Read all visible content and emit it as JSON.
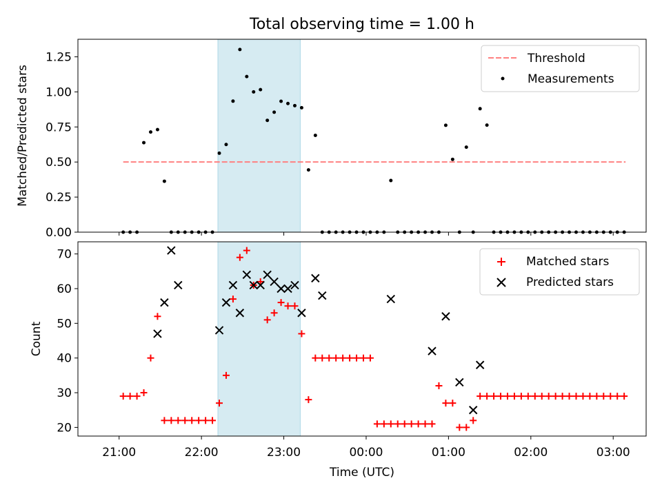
{
  "title": "Total observing time = 1.00 h",
  "colors": {
    "threshold": "#ff8080",
    "measurements": "#000000",
    "matched": "#ff0000",
    "predicted": "#000000",
    "shade": "#add8e6"
  },
  "chart_data": [
    {
      "type": "scatter",
      "ylabel": "Matched/Predicted stars",
      "ylim": [
        0,
        1.375
      ],
      "y_ticks": [
        0,
        0.25,
        0.5,
        0.75,
        1.0,
        1.25
      ],
      "y_tick_labels": [
        "0.00",
        "0.25",
        "0.50",
        "0.75",
        "1.00",
        "1.25"
      ],
      "legend": {
        "placement": "top-right",
        "entries": [
          "Threshold",
          "Measurements"
        ]
      },
      "shaded_span": [
        "22:12",
        "23:12"
      ],
      "threshold": {
        "name": "Threshold",
        "y": 0.5,
        "x_range": [
          "21:03",
          "03:09"
        ]
      },
      "series": [
        {
          "name": "Measurements",
          "x": [
            "21:03",
            "21:08",
            "21:13",
            "21:18",
            "21:23",
            "21:28",
            "21:33",
            "21:38",
            "21:43",
            "21:48",
            "21:53",
            "21:58",
            "22:03",
            "22:08",
            "22:13",
            "22:18",
            "22:23",
            "22:28",
            "22:33",
            "22:38",
            "22:43",
            "22:48",
            "22:53",
            "22:58",
            "23:03",
            "23:08",
            "23:13",
            "23:18",
            "23:23",
            "23:28",
            "23:33",
            "23:38",
            "23:43",
            "23:48",
            "23:53",
            "23:58",
            "00:03",
            "00:08",
            "00:13",
            "00:18",
            "00:23",
            "00:28",
            "00:33",
            "00:38",
            "00:43",
            "00:48",
            "00:53",
            "00:58",
            "01:03",
            "01:08",
            "01:13",
            "01:18",
            "01:23",
            "01:28",
            "01:33",
            "01:38",
            "01:43",
            "01:48",
            "01:53",
            "01:58",
            "02:03",
            "02:08",
            "02:13",
            "02:18",
            "02:23",
            "02:28",
            "02:33",
            "02:38",
            "02:43",
            "02:48",
            "02:53",
            "02:58",
            "03:03",
            "03:08"
          ],
          "y": [
            0,
            0,
            0,
            0.638,
            0.714,
            0.731,
            0.363,
            0,
            0,
            0,
            0,
            0,
            0,
            0,
            0.563,
            0.625,
            0.934,
            1.302,
            1.109,
            1.0,
            1.016,
            0.797,
            0.855,
            0.933,
            0.917,
            0.902,
            0.887,
            0.444,
            0.69,
            0,
            0,
            0,
            0,
            0,
            0,
            0,
            0,
            0,
            0,
            0.368,
            0,
            0,
            0,
            0,
            0,
            0,
            0,
            0.762,
            0.519,
            0,
            0.606,
            0,
            0.88,
            0.763,
            0,
            0,
            0,
            0,
            0,
            0,
            0,
            0,
            0,
            0,
            0,
            0,
            0,
            0,
            0,
            0,
            0,
            0,
            0,
            0
          ]
        }
      ]
    },
    {
      "type": "scatter",
      "xlabel": "Time (UTC)",
      "ylabel": "Count",
      "ylim": [
        17.5,
        73.5
      ],
      "y_ticks": [
        20,
        30,
        40,
        50,
        60,
        70
      ],
      "y_tick_labels": [
        "20",
        "30",
        "40",
        "50",
        "60",
        "70"
      ],
      "x_ticks": [
        "21:00",
        "22:00",
        "23:00",
        "00:00",
        "01:00",
        "02:00",
        "03:00"
      ],
      "legend": {
        "placement": "top-right",
        "entries": [
          "Matched stars",
          "Predicted stars"
        ]
      },
      "shaded_span": [
        "22:12",
        "23:12"
      ],
      "series": [
        {
          "name": "Matched stars",
          "x": [
            "21:03",
            "21:08",
            "21:13",
            "21:18",
            "21:23",
            "21:28",
            "21:33",
            "21:38",
            "21:43",
            "21:48",
            "21:53",
            "21:58",
            "22:03",
            "22:08",
            "22:13",
            "22:18",
            "22:23",
            "22:28",
            "22:33",
            "22:38",
            "22:43",
            "22:48",
            "22:53",
            "22:58",
            "23:03",
            "23:08",
            "23:13",
            "23:18",
            "23:23",
            "23:28",
            "23:33",
            "23:38",
            "23:43",
            "23:48",
            "23:53",
            "23:58",
            "00:03",
            "00:08",
            "00:13",
            "00:18",
            "00:23",
            "00:28",
            "00:33",
            "00:38",
            "00:43",
            "00:48",
            "00:53",
            "00:58",
            "01:03",
            "01:08",
            "01:13",
            "01:18",
            "01:23",
            "01:28",
            "01:33",
            "01:38",
            "01:43",
            "01:48",
            "01:53",
            "01:58",
            "02:03",
            "02:08",
            "02:13",
            "02:18",
            "02:23",
            "02:28",
            "02:33",
            "02:38",
            "02:43",
            "02:48",
            "02:53",
            "02:58",
            "03:03",
            "03:08"
          ],
          "y": [
            29,
            29,
            29,
            30,
            40,
            52,
            22,
            22,
            22,
            22,
            22,
            22,
            22,
            22,
            27,
            35,
            57,
            69,
            71,
            61,
            62,
            51,
            53,
            56,
            55,
            55,
            47,
            28,
            40,
            40,
            40,
            40,
            40,
            40,
            40,
            40,
            40,
            21,
            21,
            21,
            21,
            21,
            21,
            21,
            21,
            21,
            32,
            27,
            27,
            20,
            20,
            22,
            29,
            29,
            29,
            29,
            29,
            29,
            29,
            29,
            29,
            29,
            29,
            29,
            29,
            29,
            29,
            29,
            29,
            29,
            29,
            29,
            29,
            29
          ]
        },
        {
          "name": "Predicted stars",
          "x": [
            "21:28",
            "21:33",
            "21:38",
            "21:43",
            "22:13",
            "22:18",
            "22:23",
            "22:28",
            "22:33",
            "22:38",
            "22:43",
            "22:48",
            "22:53",
            "22:58",
            "23:03",
            "23:08",
            "23:13",
            "23:23",
            "23:28",
            "00:18",
            "00:48",
            "00:58",
            "01:08",
            "01:18",
            "01:23"
          ],
          "y": [
            47,
            56,
            71,
            61,
            48,
            56,
            61,
            53,
            64,
            61,
            61,
            64,
            62,
            60,
            60,
            61,
            53,
            63,
            58,
            57,
            42,
            52,
            33,
            25,
            38
          ]
        }
      ]
    }
  ]
}
